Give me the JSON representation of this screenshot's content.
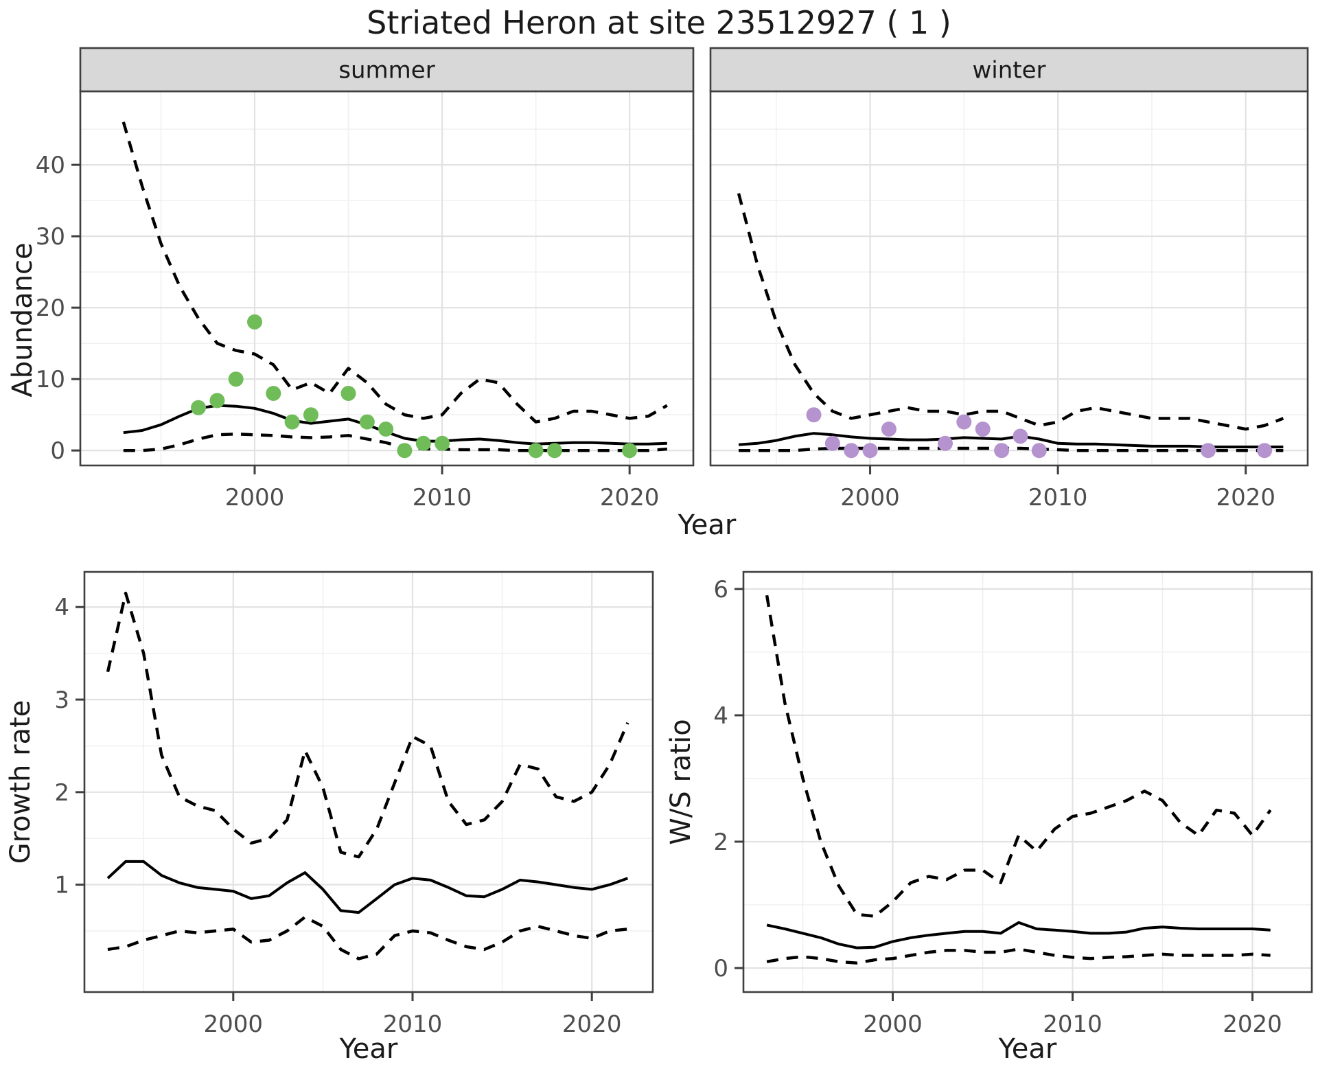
{
  "title": "Striated Heron at site 23512927 ( 1 )",
  "axes": {
    "x_title": "Year",
    "abundance_y_title": "Abundance",
    "growth_y_title": "Growth rate",
    "ws_y_title": "W/S ratio"
  },
  "colors": {
    "summer_point": "#6fbc59",
    "winter_point": "#b593cf",
    "line": "#000000",
    "strip_bg": "#d8d8d8",
    "panel_border": "#3f3f3f",
    "grid_major": "#e2e2e2",
    "grid_minor": "#f0f0f0",
    "tick_text": "#4d4d4d",
    "strip_text": "#1a1a1a"
  },
  "chart_data": [
    {
      "id": "abundance-summer",
      "type": "line",
      "facet_label": "summer",
      "xlabel": "Year",
      "ylabel": "Abundance",
      "xlim": [
        1990.7,
        2023.4
      ],
      "ylim": [
        -2.1,
        50.3
      ],
      "x_ticks": [
        2000,
        2010,
        2020
      ],
      "x_minor": [
        1995,
        2005,
        2015
      ],
      "y_ticks": [
        0,
        10,
        20,
        30,
        40
      ],
      "y_minor": [
        5,
        15,
        25,
        35,
        45
      ],
      "legend": "none",
      "years": [
        1993,
        1994,
        1995,
        1996,
        1997,
        1998,
        1999,
        2000,
        2001,
        2002,
        2003,
        2004,
        2005,
        2006,
        2007,
        2008,
        2009,
        2010,
        2011,
        2012,
        2013,
        2014,
        2015,
        2016,
        2017,
        2018,
        2019,
        2020,
        2021,
        2022
      ],
      "series": [
        {
          "name": "mean",
          "style": "solid",
          "values": [
            2.5,
            2.8,
            3.6,
            4.8,
            5.9,
            6.3,
            6.2,
            5.9,
            5.2,
            4.2,
            3.8,
            4.1,
            4.4,
            3.6,
            2.6,
            1.7,
            1.3,
            1.3,
            1.5,
            1.6,
            1.4,
            1.1,
            0.9,
            1.0,
            1.1,
            1.1,
            1.0,
            0.9,
            0.9,
            1.0
          ]
        },
        {
          "name": "ci_upper",
          "style": "dashed",
          "values": [
            46,
            37,
            29,
            23,
            18.5,
            15,
            14,
            13.5,
            12,
            8.5,
            9.5,
            8,
            11.5,
            9.5,
            6.5,
            5,
            4.5,
            5,
            8,
            10,
            9.5,
            6.5,
            4,
            4.5,
            5.5,
            5.5,
            5,
            4.5,
            4.8,
            6.3
          ]
        },
        {
          "name": "ci_lower",
          "style": "dashed",
          "values": [
            0,
            0,
            0.2,
            0.8,
            1.6,
            2.2,
            2.3,
            2.2,
            2.1,
            1.9,
            1.8,
            1.9,
            2.1,
            1.6,
            1.1,
            0.4,
            0.2,
            0.2,
            0.1,
            0.1,
            0.1,
            0,
            0,
            0,
            0,
            0,
            0,
            0,
            0,
            0.2
          ]
        }
      ],
      "observations": {
        "years": [
          1997,
          1998,
          1999,
          2000,
          2001,
          2002,
          2003,
          2005,
          2006,
          2007,
          2008,
          2009,
          2010,
          2015,
          2016,
          2020
        ],
        "values": [
          6,
          7,
          10,
          18,
          8,
          4,
          5,
          8,
          4,
          3,
          0,
          1,
          1,
          0,
          0,
          0
        ],
        "color": "#6fbc59"
      }
    },
    {
      "id": "abundance-winter",
      "type": "line",
      "facet_label": "winter",
      "xlabel": "Year",
      "ylabel": "Abundance",
      "xlim": [
        1991.5,
        2023.3
      ],
      "ylim": [
        -2.1,
        50.3
      ],
      "x_ticks": [
        2000,
        2010,
        2020
      ],
      "x_minor": [
        1995,
        2005,
        2015
      ],
      "y_ticks": [
        0,
        10,
        20,
        30,
        40
      ],
      "y_minor": [
        5,
        15,
        25,
        35,
        45
      ],
      "legend": "none",
      "years": [
        1993,
        1994,
        1995,
        1996,
        1997,
        1998,
        1999,
        2000,
        2001,
        2002,
        2003,
        2004,
        2005,
        2006,
        2007,
        2008,
        2009,
        2010,
        2011,
        2012,
        2013,
        2014,
        2015,
        2016,
        2017,
        2018,
        2019,
        2020,
        2021,
        2022
      ],
      "series": [
        {
          "name": "mean",
          "style": "solid",
          "values": [
            0.8,
            1.0,
            1.4,
            2.0,
            2.4,
            2.2,
            1.9,
            1.7,
            1.6,
            1.5,
            1.5,
            1.6,
            1.8,
            1.7,
            1.6,
            2.0,
            1.6,
            1.0,
            0.9,
            0.9,
            0.8,
            0.7,
            0.6,
            0.6,
            0.6,
            0.5,
            0.5,
            0.5,
            0.5,
            0.5
          ]
        },
        {
          "name": "ci_upper",
          "style": "dashed",
          "values": [
            36,
            26,
            18,
            12,
            8,
            5.5,
            4.5,
            5,
            5.5,
            6,
            5.5,
            5.5,
            5,
            5.5,
            5.5,
            4.5,
            3.5,
            4,
            5.5,
            6,
            5.5,
            5,
            4.5,
            4.5,
            4.5,
            4,
            3.5,
            3,
            3.5,
            4.5
          ]
        },
        {
          "name": "ci_lower",
          "style": "dashed",
          "values": [
            0,
            0,
            0,
            0,
            0.2,
            0.3,
            0.3,
            0.3,
            0.3,
            0.3,
            0.3,
            0.3,
            0.3,
            0.3,
            0.3,
            0.3,
            0.2,
            0.1,
            0,
            0,
            0,
            0,
            0,
            0,
            0,
            0,
            0,
            0,
            0,
            0
          ]
        }
      ],
      "observations": {
        "years": [
          1997,
          1998,
          1999,
          2000,
          2001,
          2004,
          2005,
          2006,
          2007,
          2008,
          2009,
          2018,
          2021
        ],
        "values": [
          5,
          1,
          0,
          0,
          3,
          1,
          4,
          3,
          0,
          2,
          0,
          0,
          0
        ],
        "color": "#b593cf"
      }
    },
    {
      "id": "growth-rate",
      "type": "line",
      "facet_label": "",
      "xlabel": "Year",
      "ylabel": "Growth rate",
      "xlim": [
        1991.7,
        2023.4
      ],
      "ylim": [
        -0.16,
        4.38
      ],
      "x_ticks": [
        2000,
        2010,
        2020
      ],
      "x_minor": [
        1995,
        2005,
        2015
      ],
      "y_ticks": [
        1,
        2,
        3,
        4
      ],
      "y_minor": [
        0.5,
        1.5,
        2.5,
        3.5
      ],
      "legend": "none",
      "years": [
        1993,
        1994,
        1995,
        1996,
        1997,
        1998,
        1999,
        2000,
        2001,
        2002,
        2003,
        2004,
        2005,
        2006,
        2007,
        2008,
        2009,
        2010,
        2011,
        2012,
        2013,
        2014,
        2015,
        2016,
        2017,
        2018,
        2019,
        2020,
        2021,
        2022
      ],
      "series": [
        {
          "name": "mean",
          "style": "solid",
          "values": [
            1.07,
            1.25,
            1.25,
            1.1,
            1.02,
            0.97,
            0.95,
            0.93,
            0.85,
            0.88,
            1.02,
            1.13,
            0.95,
            0.72,
            0.7,
            0.85,
            1.0,
            1.07,
            1.05,
            0.97,
            0.88,
            0.87,
            0.95,
            1.05,
            1.03,
            1.0,
            0.97,
            0.95,
            1.0,
            1.07
          ]
        },
        {
          "name": "ci_upper",
          "style": "dashed",
          "values": [
            3.3,
            4.15,
            3.5,
            2.4,
            1.95,
            1.85,
            1.8,
            1.6,
            1.45,
            1.5,
            1.7,
            2.45,
            2.05,
            1.35,
            1.3,
            1.6,
            2.1,
            2.6,
            2.5,
            1.9,
            1.65,
            1.7,
            1.9,
            2.3,
            2.25,
            1.95,
            1.9,
            2.0,
            2.3,
            2.75
          ]
        },
        {
          "name": "ci_lower",
          "style": "dashed",
          "values": [
            0.3,
            0.33,
            0.4,
            0.45,
            0.5,
            0.48,
            0.5,
            0.52,
            0.38,
            0.4,
            0.5,
            0.65,
            0.55,
            0.3,
            0.2,
            0.25,
            0.45,
            0.5,
            0.48,
            0.4,
            0.33,
            0.3,
            0.38,
            0.5,
            0.55,
            0.5,
            0.45,
            0.42,
            0.5,
            0.52
          ]
        }
      ],
      "observations": {
        "years": [],
        "values": [],
        "color": "#000000"
      }
    },
    {
      "id": "ws-ratio",
      "type": "line",
      "facet_label": "",
      "xlabel": "Year",
      "ylabel": "W/S ratio",
      "xlim": [
        1991.7,
        2023.3
      ],
      "ylim": [
        -0.38,
        6.27
      ],
      "x_ticks": [
        2000,
        2010,
        2020
      ],
      "x_minor": [
        1995,
        2005,
        2015
      ],
      "y_ticks": [
        0,
        2,
        4,
        6
      ],
      "y_minor": [
        1,
        3,
        5
      ],
      "legend": "none",
      "years": [
        1993,
        1994,
        1995,
        1996,
        1997,
        1998,
        1999,
        2000,
        2001,
        2002,
        2003,
        2004,
        2005,
        2006,
        2007,
        2008,
        2009,
        2010,
        2011,
        2012,
        2013,
        2014,
        2015,
        2016,
        2017,
        2018,
        2019,
        2020,
        2021
      ],
      "series": [
        {
          "name": "mean",
          "style": "solid",
          "values": [
            0.68,
            0.62,
            0.55,
            0.48,
            0.38,
            0.32,
            0.33,
            0.42,
            0.48,
            0.52,
            0.55,
            0.58,
            0.58,
            0.55,
            0.72,
            0.62,
            0.6,
            0.58,
            0.55,
            0.55,
            0.57,
            0.63,
            0.65,
            0.63,
            0.62,
            0.62,
            0.62,
            0.62,
            0.6
          ]
        },
        {
          "name": "ci_upper",
          "style": "dashed",
          "values": [
            5.9,
            4.2,
            3.0,
            2.0,
            1.3,
            0.85,
            0.82,
            1.05,
            1.35,
            1.45,
            1.4,
            1.55,
            1.55,
            1.35,
            2.1,
            1.85,
            2.2,
            2.4,
            2.45,
            2.55,
            2.65,
            2.8,
            2.65,
            2.3,
            2.1,
            2.5,
            2.45,
            2.1,
            2.5
          ]
        },
        {
          "name": "ci_lower",
          "style": "dashed",
          "values": [
            0.1,
            0.15,
            0.18,
            0.15,
            0.1,
            0.08,
            0.13,
            0.15,
            0.2,
            0.25,
            0.28,
            0.28,
            0.25,
            0.25,
            0.3,
            0.25,
            0.2,
            0.17,
            0.15,
            0.17,
            0.18,
            0.2,
            0.22,
            0.2,
            0.2,
            0.2,
            0.2,
            0.22,
            0.2
          ]
        }
      ],
      "observations": {
        "years": [],
        "values": [],
        "color": "#000000"
      }
    }
  ]
}
